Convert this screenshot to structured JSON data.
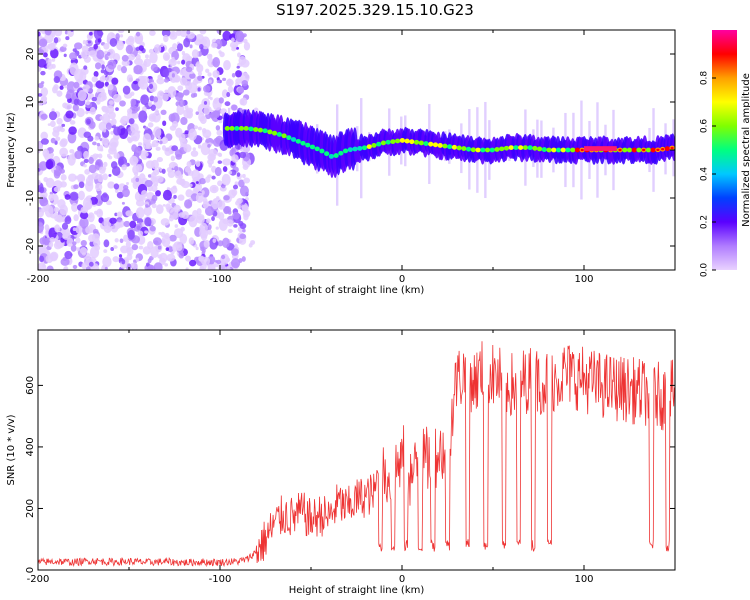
{
  "figure": {
    "title": "S197.2025.329.15.10.G23"
  },
  "colors": {
    "spectrum_low": "#9a6bf0",
    "spectrum_band": "#3b00ff",
    "snr_line": "#ee3333",
    "axis": "#000000"
  },
  "chart_data": [
    {
      "type": "heatmap",
      "title": "",
      "xlabel": "Height of straight line (km)",
      "ylabel": "Frequency (Hz)",
      "xlim": [
        -200,
        150
      ],
      "ylim": [
        -25,
        25
      ],
      "x_ticks": [
        -200,
        -100,
        0,
        100
      ],
      "x_tick_labels": [
        "-200",
        "-100",
        "0",
        "100"
      ],
      "y_ticks": [
        -20,
        -10,
        0,
        10,
        20
      ],
      "y_tick_labels": [
        "-20",
        "-10",
        "0",
        "10",
        "20"
      ],
      "band_center": {
        "x": [
          -97,
          -85,
          -75,
          -65,
          -55,
          -45,
          -38,
          -30,
          -20,
          -10,
          0,
          10,
          20,
          30,
          40,
          50,
          60,
          70,
          80,
          90,
          100,
          110,
          120,
          130,
          140,
          150
        ],
        "frequency": [
          4.5,
          4.5,
          4,
          3,
          1.5,
          0,
          -1.5,
          0,
          0.5,
          1.5,
          2,
          1.5,
          1,
          0.5,
          0,
          0,
          0.5,
          0.5,
          0,
          0,
          0,
          0,
          0,
          0,
          0,
          0.5
        ]
      },
      "noise_region_x": [
        -200,
        -85
      ],
      "colorbar": {
        "label": "Normalized spectral amplitude",
        "min": 0,
        "max": 1,
        "ticks": [
          0.0,
          0.2,
          0.4,
          0.6,
          0.8
        ],
        "tick_labels": [
          "0.0",
          "0.2",
          "0.4",
          "0.6",
          "0.8"
        ],
        "colors": [
          "#e9d2ff",
          "#b07cff",
          "#5a00ff",
          "#0040ff",
          "#00c8ff",
          "#00ff80",
          "#80ff00",
          "#ffff00",
          "#ffa000",
          "#ff0000",
          "#ff00a0"
        ]
      }
    },
    {
      "type": "line",
      "title": "",
      "xlabel": "Height of straight line (km)",
      "ylabel": "SNR (10 * v/v)",
      "xlim": [
        -200,
        150
      ],
      "ylim": [
        0,
        780
      ],
      "x_ticks": [
        -200,
        -100,
        0,
        100
      ],
      "x_tick_labels": [
        "-200",
        "-100",
        "0",
        "100"
      ],
      "y_ticks": [
        0,
        200,
        400,
        600
      ],
      "y_tick_labels": [
        "0",
        "200",
        "400",
        "600"
      ],
      "series": [
        {
          "name": "SNR",
          "x": [
            -200,
            -190,
            -180,
            -170,
            -160,
            -150,
            -140,
            -130,
            -120,
            -110,
            -100,
            -90,
            -85,
            -80,
            -75,
            -70,
            -65,
            -60,
            -55,
            -50,
            -45,
            -40,
            -35,
            -30,
            -25,
            -20,
            -15,
            -12,
            -10,
            -8,
            -5,
            -2,
            0,
            5,
            10,
            15,
            20,
            25,
            30,
            35,
            40,
            45,
            50,
            60,
            70,
            80,
            90,
            100,
            110,
            120,
            130,
            140,
            145,
            150
          ],
          "values": [
            25,
            28,
            25,
            30,
            26,
            28,
            25,
            27,
            24,
            26,
            25,
            28,
            35,
            60,
            100,
            150,
            180,
            170,
            190,
            160,
            180,
            170,
            220,
            200,
            230,
            240,
            250,
            350,
            300,
            280,
            320,
            340,
            380,
            300,
            350,
            360,
            380,
            400,
            620,
            640,
            610,
            650,
            630,
            600,
            620,
            610,
            640,
            620,
            600,
            590,
            580,
            570,
            560,
            580
          ]
        }
      ]
    }
  ]
}
